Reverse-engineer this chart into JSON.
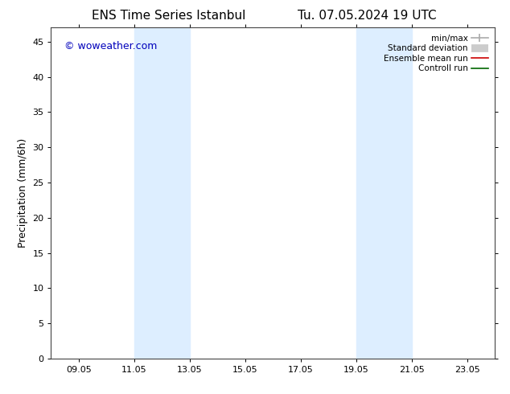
{
  "title_left": "ENS Time Series Istanbul",
  "title_right": "Tu. 07.05.2024 19 UTC",
  "ylabel": "Precipitation (mm/6h)",
  "watermark": "© woweather.com",
  "xtick_labels": [
    "09.05",
    "11.05",
    "13.05",
    "15.05",
    "17.05",
    "19.05",
    "21.05",
    "23.05"
  ],
  "xtick_positions": [
    1,
    3,
    5,
    7,
    9,
    11,
    13,
    15
  ],
  "xlim": [
    0,
    16
  ],
  "ylim": [
    0,
    47
  ],
  "ytick_positions": [
    0,
    5,
    10,
    15,
    20,
    25,
    30,
    35,
    40,
    45
  ],
  "shaded_bands": [
    {
      "xstart": 3.0,
      "xend": 5.0
    },
    {
      "xstart": 11.0,
      "xend": 13.0
    }
  ],
  "shaded_color": "#ddeeff",
  "background_color": "#ffffff",
  "legend_items": [
    {
      "label": "min/max",
      "color": "#aaaaaa",
      "lw": 1.2,
      "style": "line_with_cap"
    },
    {
      "label": "Standard deviation",
      "color": "#cccccc",
      "lw": 7,
      "style": "thick_line"
    },
    {
      "label": "Ensemble mean run",
      "color": "#cc0000",
      "lw": 1.2,
      "style": "line"
    },
    {
      "label": "Controll run",
      "color": "#006600",
      "lw": 1.2,
      "style": "line"
    }
  ],
  "title_fontsize": 11,
  "axis_fontsize": 9,
  "tick_fontsize": 8,
  "watermark_color": "#0000bb",
  "watermark_fontsize": 9
}
